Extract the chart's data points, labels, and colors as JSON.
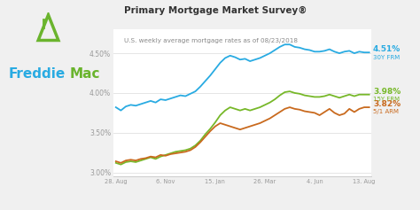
{
  "title": "Primary Mortgage Market Survey®",
  "subtitle": "U.S. weekly average mortgage rates as of 08/23/2018",
  "freddie_blue": "#29ABE2",
  "freddie_green": "#6AB42D",
  "bg_color": "#f0f0f0",
  "plot_bg": "#ffffff",
  "line_30y_color": "#29ABE2",
  "line_15y_color": "#77B829",
  "line_51arm_color": "#C96A1E",
  "label_30y": "4.51%",
  "label_30y_sub": "30Y FRM",
  "label_15y": "3.98%",
  "label_15y_sub": "15Y FRM",
  "label_51arm": "3.82%",
  "label_51arm_sub": "5/1 ARM",
  "x_labels": [
    "28. Aug",
    "6. Nov",
    "15. Jan",
    "26. Mar",
    "4. Jun",
    "13. Aug"
  ],
  "ylim": [
    2.95,
    4.8
  ],
  "yticks": [
    3.0,
    3.5,
    4.0,
    4.5
  ],
  "ytick_labels": [
    "3.00%",
    "3.50%",
    "4.00%",
    "4.50%"
  ],
  "grid_color": "#e0e0e0",
  "tick_color": "#999999",
  "y_30y": [
    3.82,
    3.78,
    3.83,
    3.85,
    3.84,
    3.86,
    3.88,
    3.9,
    3.88,
    3.92,
    3.91,
    3.93,
    3.95,
    3.97,
    3.96,
    3.99,
    4.02,
    4.08,
    4.15,
    4.22,
    4.3,
    4.38,
    4.44,
    4.47,
    4.45,
    4.42,
    4.43,
    4.4,
    4.42,
    4.44,
    4.47,
    4.5,
    4.54,
    4.58,
    4.61,
    4.61,
    4.58,
    4.57,
    4.55,
    4.54,
    4.52,
    4.52,
    4.53,
    4.55,
    4.52,
    4.5,
    4.52,
    4.53,
    4.5,
    4.52,
    4.51,
    4.51
  ],
  "y_15y": [
    3.12,
    3.1,
    3.13,
    3.14,
    3.13,
    3.15,
    3.17,
    3.19,
    3.17,
    3.2,
    3.22,
    3.24,
    3.26,
    3.27,
    3.28,
    3.3,
    3.34,
    3.4,
    3.48,
    3.55,
    3.63,
    3.72,
    3.78,
    3.82,
    3.8,
    3.78,
    3.8,
    3.78,
    3.8,
    3.82,
    3.85,
    3.88,
    3.92,
    3.97,
    4.01,
    4.02,
    4.0,
    3.99,
    3.97,
    3.96,
    3.95,
    3.95,
    3.96,
    3.98,
    3.96,
    3.94,
    3.96,
    3.98,
    3.96,
    3.98,
    3.98,
    3.98
  ],
  "y_51arm": [
    3.14,
    3.12,
    3.15,
    3.16,
    3.15,
    3.17,
    3.18,
    3.2,
    3.19,
    3.22,
    3.21,
    3.23,
    3.24,
    3.25,
    3.26,
    3.28,
    3.32,
    3.38,
    3.45,
    3.52,
    3.58,
    3.62,
    3.6,
    3.58,
    3.56,
    3.54,
    3.56,
    3.58,
    3.6,
    3.62,
    3.65,
    3.68,
    3.72,
    3.76,
    3.8,
    3.82,
    3.8,
    3.79,
    3.77,
    3.76,
    3.75,
    3.72,
    3.76,
    3.8,
    3.75,
    3.72,
    3.74,
    3.8,
    3.76,
    3.8,
    3.82,
    3.82
  ],
  "xtick_pos": [
    0,
    10,
    20,
    30,
    40,
    50
  ]
}
